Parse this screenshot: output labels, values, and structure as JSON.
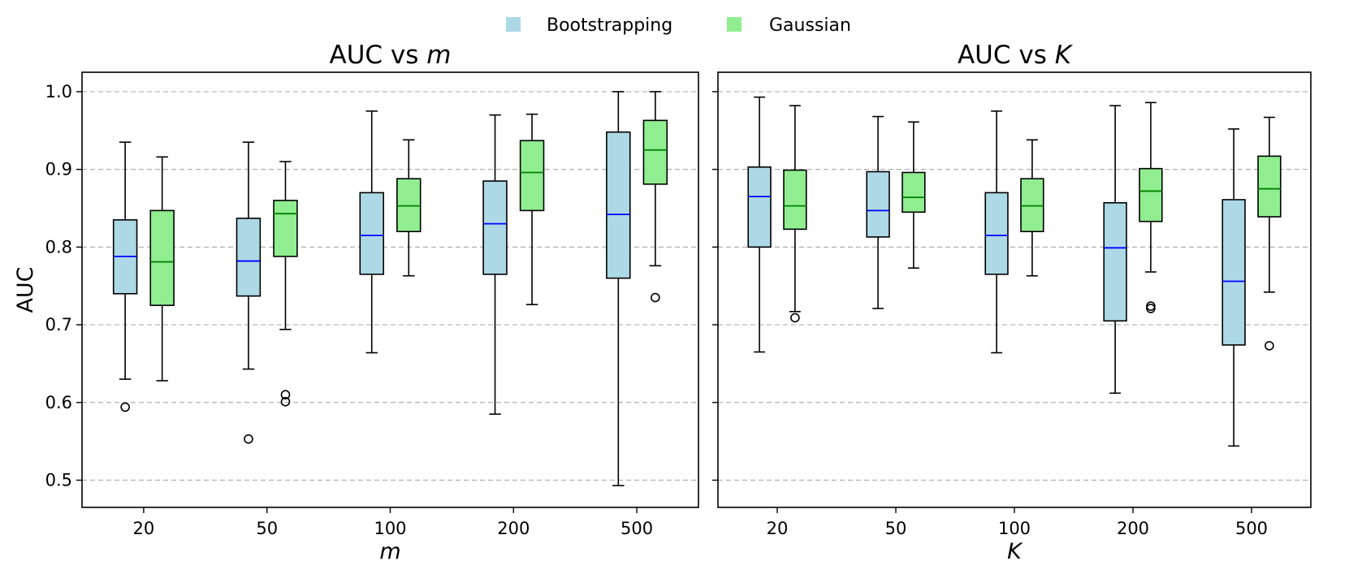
{
  "chart_data": [
    {
      "type": "box",
      "title_prefix": "AUC vs ",
      "title_var": "m",
      "xlabel": "m",
      "ylabel": "AUC",
      "categories": [
        "20",
        "50",
        "100",
        "200",
        "500"
      ],
      "ylim": [
        0.465,
        1.025
      ],
      "yticks": [
        0.5,
        0.6,
        0.7,
        0.8,
        0.9,
        1.0
      ],
      "ytick_labels": [
        "0.5",
        "0.6",
        "0.7",
        "0.8",
        "0.9",
        "1.0"
      ],
      "grid": "y-dashed",
      "series": [
        {
          "name": "Bootstrapping",
          "color": "#add8e6",
          "median_color": "#0000ff",
          "boxes": [
            {
              "whislo": 0.63,
              "q1": 0.74,
              "med": 0.788,
              "q3": 0.835,
              "whishi": 0.935,
              "fliers": [
                0.594
              ]
            },
            {
              "whislo": 0.643,
              "q1": 0.737,
              "med": 0.782,
              "q3": 0.837,
              "whishi": 0.935,
              "fliers": [
                0.553
              ]
            },
            {
              "whislo": 0.664,
              "q1": 0.765,
              "med": 0.815,
              "q3": 0.87,
              "whishi": 0.975,
              "fliers": []
            },
            {
              "whislo": 0.585,
              "q1": 0.765,
              "med": 0.83,
              "q3": 0.885,
              "whishi": 0.97,
              "fliers": []
            },
            {
              "whislo": 0.493,
              "q1": 0.76,
              "med": 0.842,
              "q3": 0.948,
              "whishi": 1.0,
              "fliers": []
            }
          ]
        },
        {
          "name": "Gaussian",
          "color": "#90ee90",
          "median_color": "#008000",
          "boxes": [
            {
              "whislo": 0.628,
              "q1": 0.725,
              "med": 0.781,
              "q3": 0.847,
              "whishi": 0.916,
              "fliers": []
            },
            {
              "whislo": 0.694,
              "q1": 0.788,
              "med": 0.843,
              "q3": 0.86,
              "whishi": 0.91,
              "fliers": [
                0.601,
                0.61
              ]
            },
            {
              "whislo": 0.763,
              "q1": 0.82,
              "med": 0.853,
              "q3": 0.888,
              "whishi": 0.938,
              "fliers": []
            },
            {
              "whislo": 0.726,
              "q1": 0.847,
              "med": 0.896,
              "q3": 0.937,
              "whishi": 0.971,
              "fliers": []
            },
            {
              "whislo": 0.776,
              "q1": 0.881,
              "med": 0.925,
              "q3": 0.963,
              "whishi": 1.0,
              "fliers": [
                0.735
              ]
            }
          ]
        }
      ]
    },
    {
      "type": "box",
      "title_prefix": "AUC vs ",
      "title_var": "K",
      "xlabel": "K",
      "ylabel": "",
      "categories": [
        "20",
        "50",
        "100",
        "200",
        "500"
      ],
      "ylim": [
        0.465,
        1.025
      ],
      "yticks": [
        0.5,
        0.6,
        0.7,
        0.8,
        0.9,
        1.0
      ],
      "ytick_labels": [],
      "grid": "y-dashed",
      "series": [
        {
          "name": "Bootstrapping",
          "color": "#add8e6",
          "median_color": "#0000ff",
          "boxes": [
            {
              "whislo": 0.665,
              "q1": 0.8,
              "med": 0.865,
              "q3": 0.903,
              "whishi": 0.993,
              "fliers": []
            },
            {
              "whislo": 0.721,
              "q1": 0.813,
              "med": 0.847,
              "q3": 0.897,
              "whishi": 0.968,
              "fliers": []
            },
            {
              "whislo": 0.664,
              "q1": 0.765,
              "med": 0.815,
              "q3": 0.87,
              "whishi": 0.975,
              "fliers": []
            },
            {
              "whislo": 0.612,
              "q1": 0.705,
              "med": 0.799,
              "q3": 0.857,
              "whishi": 0.982,
              "fliers": []
            },
            {
              "whislo": 0.544,
              "q1": 0.674,
              "med": 0.756,
              "q3": 0.861,
              "whishi": 0.952,
              "fliers": []
            }
          ]
        },
        {
          "name": "Gaussian",
          "color": "#90ee90",
          "median_color": "#008000",
          "boxes": [
            {
              "whislo": 0.717,
              "q1": 0.823,
              "med": 0.853,
              "q3": 0.899,
              "whishi": 0.982,
              "fliers": [
                0.709
              ]
            },
            {
              "whislo": 0.773,
              "q1": 0.845,
              "med": 0.864,
              "q3": 0.896,
              "whishi": 0.961,
              "fliers": []
            },
            {
              "whislo": 0.763,
              "q1": 0.82,
              "med": 0.853,
              "q3": 0.888,
              "whishi": 0.938,
              "fliers": []
            },
            {
              "whislo": 0.768,
              "q1": 0.833,
              "med": 0.872,
              "q3": 0.901,
              "whishi": 0.986,
              "fliers": [
                0.721,
                0.724
              ]
            },
            {
              "whislo": 0.742,
              "q1": 0.839,
              "med": 0.875,
              "q3": 0.917,
              "whishi": 0.967,
              "fliers": [
                0.673
              ]
            }
          ]
        }
      ]
    }
  ],
  "legend": {
    "placement": "top-center",
    "items": [
      {
        "label": "Bootstrapping",
        "color": "#add8e6"
      },
      {
        "label": "Gaussian",
        "color": "#90ee90"
      }
    ]
  }
}
